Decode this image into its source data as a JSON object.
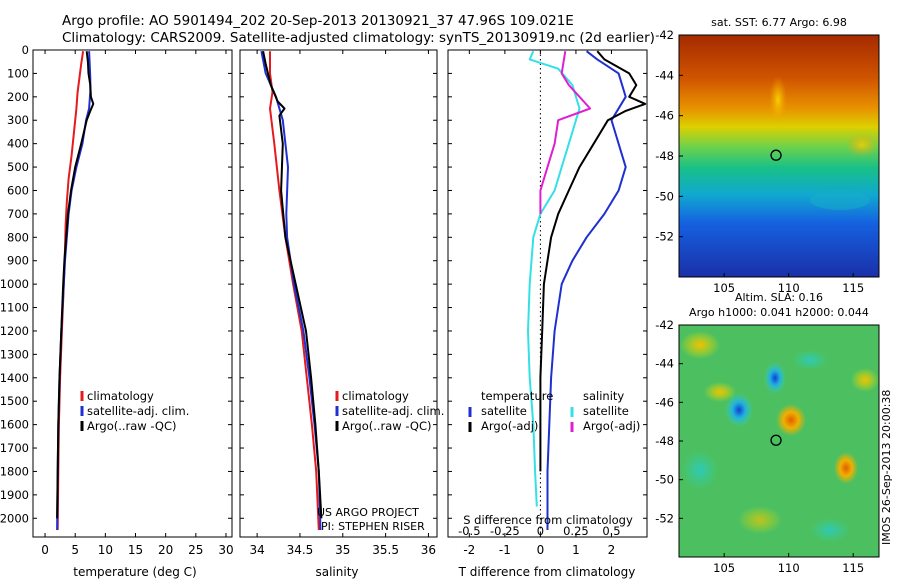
{
  "header": {
    "line1": "Argo profile: AO 5901494_202 20-Sep-2013 20130921_37 47.96S 109.021E",
    "line2": "Climatology: CARS2009. Satellite-adjusted climatology: synTS_20130919.nc (2d earlier)"
  },
  "colors": {
    "climatology": "#e41a1c",
    "satellite": "#1f2fd0",
    "argo": "#000000",
    "sat_salinity": "#33e0e6",
    "argo_salinity": "#e01fd0"
  },
  "chart_data": [
    {
      "type": "line",
      "id": "temperature",
      "xlabel": "temperature (deg C)",
      "ylabel": "",
      "xlim": [
        -2,
        31
      ],
      "ylim": [
        0,
        2080
      ],
      "y_reversed": true,
      "xticks": [
        0,
        5,
        10,
        15,
        20,
        25,
        30
      ],
      "yticks": [
        0,
        100,
        200,
        300,
        400,
        500,
        600,
        700,
        800,
        900,
        1000,
        1100,
        1200,
        1300,
        1400,
        1500,
        1600,
        1700,
        1800,
        1900,
        2000
      ],
      "legend": {
        "position": "lower-right",
        "entries": [
          "climatology",
          "satellite-adj. clim.",
          "Argo(..raw -QC)"
        ]
      },
      "series": [
        {
          "name": "climatology",
          "color": "#e41a1c",
          "points": [
            [
              6.3,
              5
            ],
            [
              6.0,
              60
            ],
            [
              5.7,
              120
            ],
            [
              5.4,
              180
            ],
            [
              5.2,
              250
            ],
            [
              4.8,
              350
            ],
            [
              4.4,
              450
            ],
            [
              3.9,
              550
            ],
            [
              3.6,
              650
            ],
            [
              3.4,
              750
            ],
            [
              3.3,
              850
            ],
            [
              3.1,
              1000
            ],
            [
              2.8,
              1200
            ],
            [
              2.5,
              1400
            ],
            [
              2.3,
              1600
            ],
            [
              2.2,
              1800
            ],
            [
              2.1,
              2050
            ]
          ]
        },
        {
          "name": "satellite-adj. clim.",
          "color": "#1f2fd0",
          "points": [
            [
              7.3,
              5
            ],
            [
              7.4,
              60
            ],
            [
              7.5,
              120
            ],
            [
              7.5,
              180
            ],
            [
              7.3,
              250
            ],
            [
              6.8,
              300
            ],
            [
              6.2,
              400
            ],
            [
              5.2,
              500
            ],
            [
              4.4,
              600
            ],
            [
              3.9,
              700
            ],
            [
              3.6,
              800
            ],
            [
              3.3,
              900
            ],
            [
              3.1,
              1000
            ],
            [
              2.7,
              1200
            ],
            [
              2.4,
              1400
            ],
            [
              2.2,
              1600
            ],
            [
              2.1,
              1800
            ],
            [
              2.0,
              2050
            ]
          ]
        },
        {
          "name": "Argo(..raw -QC)",
          "color": "#000000",
          "points": [
            [
              6.9,
              5
            ],
            [
              7.1,
              50
            ],
            [
              7.2,
              100
            ],
            [
              7.5,
              150
            ],
            [
              7.6,
              200
            ],
            [
              8.0,
              230
            ],
            [
              7.5,
              260
            ],
            [
              6.9,
              300
            ],
            [
              6.0,
              400
            ],
            [
              5.0,
              500
            ],
            [
              4.3,
              600
            ],
            [
              3.8,
              700
            ],
            [
              3.5,
              800
            ],
            [
              3.2,
              900
            ],
            [
              3.0,
              1000
            ],
            [
              2.7,
              1200
            ],
            [
              2.4,
              1400
            ],
            [
              2.2,
              1600
            ],
            [
              2.1,
              1800
            ],
            [
              2.0,
              2000
            ]
          ]
        }
      ]
    },
    {
      "type": "line",
      "id": "salinity",
      "xlabel": "salinity",
      "xlim": [
        33.8,
        36.1
      ],
      "ylim": [
        0,
        2080
      ],
      "y_reversed": true,
      "xticks": [
        34,
        34.5,
        35,
        35.5,
        36
      ],
      "legend": {
        "position": "lower-right",
        "entries": [
          "climatology",
          "satellite-adj. clim.",
          "Argo(..raw -QC)"
        ]
      },
      "annotations": [
        "US ARGO PROJECT",
        "PI: STEPHEN RISER"
      ],
      "series": [
        {
          "name": "climatology",
          "color": "#e41a1c",
          "points": [
            [
              34.15,
              5
            ],
            [
              34.15,
              100
            ],
            [
              34.18,
              180
            ],
            [
              34.15,
              250
            ],
            [
              34.2,
              400
            ],
            [
              34.26,
              600
            ],
            [
              34.33,
              800
            ],
            [
              34.42,
              1000
            ],
            [
              34.52,
              1200
            ],
            [
              34.58,
              1400
            ],
            [
              34.64,
              1600
            ],
            [
              34.69,
              1800
            ],
            [
              34.72,
              2050
            ]
          ]
        },
        {
          "name": "satellite-adj. clim.",
          "color": "#1f2fd0",
          "points": [
            [
              34.05,
              5
            ],
            [
              34.1,
              100
            ],
            [
              34.22,
              200
            ],
            [
              34.3,
              300
            ],
            [
              34.33,
              400
            ],
            [
              34.36,
              500
            ],
            [
              34.34,
              700
            ],
            [
              34.35,
              800
            ],
            [
              34.43,
              1000
            ],
            [
              34.54,
              1200
            ],
            [
              34.61,
              1400
            ],
            [
              34.67,
              1600
            ],
            [
              34.72,
              1800
            ],
            [
              34.74,
              2050
            ]
          ]
        },
        {
          "name": "Argo(..raw -QC)",
          "color": "#000000",
          "points": [
            [
              34.07,
              5
            ],
            [
              34.1,
              60
            ],
            [
              34.16,
              150
            ],
            [
              34.24,
              220
            ],
            [
              34.32,
              250
            ],
            [
              34.26,
              280
            ],
            [
              34.3,
              400
            ],
            [
              34.28,
              600
            ],
            [
              34.33,
              800
            ],
            [
              34.45,
              1000
            ],
            [
              34.57,
              1200
            ],
            [
              34.63,
              1400
            ],
            [
              34.68,
              1600
            ],
            [
              34.72,
              1800
            ],
            [
              34.75,
              2000
            ]
          ]
        }
      ]
    },
    {
      "type": "line",
      "id": "difference",
      "xlabel": "T difference from climatology",
      "xlabel_top": "S difference from climatology",
      "xlim": [
        -2.6,
        3.0
      ],
      "ylim": [
        0,
        2080
      ],
      "y_reversed": true,
      "xticks": [
        -2,
        -1,
        0,
        1,
        2
      ],
      "sticks": {
        "values": [
          -0.5,
          -0.25,
          0,
          0.25,
          0.5
        ],
        "labels": [
          "-0.5",
          "-0.25",
          "0",
          "0.25",
          "0.5"
        ]
      },
      "legend": {
        "position": "lower-right",
        "groups": [
          {
            "title": "temperature",
            "entries": [
              "satellite",
              "Argo(-adj)"
            ]
          },
          {
            "title": "salinity",
            "entries": [
              "satellite",
              "Argo(-adj)"
            ]
          }
        ]
      },
      "series": [
        {
          "name": "satellite",
          "group": "temperature",
          "color": "#1f2fd0",
          "points": [
            [
              1.3,
              5
            ],
            [
              1.6,
              40
            ],
            [
              2.2,
              100
            ],
            [
              2.4,
              200
            ],
            [
              2.0,
              300
            ],
            [
              2.2,
              400
            ],
            [
              2.4,
              500
            ],
            [
              2.2,
              600
            ],
            [
              1.8,
              700
            ],
            [
              1.3,
              800
            ],
            [
              0.9,
              900
            ],
            [
              0.6,
              1000
            ],
            [
              0.4,
              1200
            ],
            [
              0.3,
              1400
            ],
            [
              0.25,
              1600
            ],
            [
              0.2,
              1800
            ],
            [
              0.2,
              2050
            ]
          ]
        },
        {
          "name": "Argo(-adj)",
          "group": "temperature",
          "color": "#000000",
          "points": [
            [
              1.6,
              5
            ],
            [
              1.8,
              40
            ],
            [
              2.5,
              100
            ],
            [
              2.7,
              150
            ],
            [
              2.5,
              200
            ],
            [
              2.95,
              230
            ],
            [
              2.4,
              260
            ],
            [
              1.9,
              300
            ],
            [
              1.5,
              400
            ],
            [
              1.1,
              500
            ],
            [
              0.8,
              600
            ],
            [
              0.5,
              700
            ],
            [
              0.3,
              800
            ],
            [
              0.2,
              900
            ],
            [
              0.1,
              1000
            ],
            [
              0.05,
              1200
            ],
            [
              0.0,
              1400
            ],
            [
              0.0,
              1600
            ],
            [
              0.0,
              1800
            ]
          ]
        },
        {
          "name": "satellite",
          "group": "salinity",
          "color": "#33e0e6",
          "points": [
            [
              -0.2,
              5
            ],
            [
              -0.3,
              40
            ],
            [
              0.5,
              80
            ],
            [
              0.9,
              150
            ],
            [
              1.1,
              250
            ],
            [
              0.9,
              350
            ],
            [
              0.6,
              500
            ],
            [
              0.4,
              600
            ],
            [
              0.0,
              700
            ],
            [
              -0.2,
              800
            ],
            [
              -0.3,
              1000
            ],
            [
              -0.35,
              1200
            ],
            [
              -0.3,
              1400
            ],
            [
              -0.2,
              1600
            ],
            [
              -0.15,
              1800
            ],
            [
              -0.1,
              1950
            ]
          ]
        },
        {
          "name": "Argo(-adj)",
          "group": "salinity",
          "color": "#e01fd0",
          "points": [
            [
              0.7,
              5
            ],
            [
              0.6,
              100
            ],
            [
              0.8,
              150
            ],
            [
              1.1,
              200
            ],
            [
              1.4,
              250
            ],
            [
              0.5,
              300
            ],
            [
              0.4,
              400
            ],
            [
              0.2,
              500
            ],
            [
              0.0,
              600
            ],
            [
              0.0,
              700
            ]
          ]
        }
      ]
    },
    {
      "type": "heatmap",
      "id": "sst-map",
      "title": "sat. SST: 6.77 Argo: 6.98",
      "xlim": [
        101.5,
        117
      ],
      "ylim": [
        -54,
        -42
      ],
      "xticks": [
        105,
        110,
        115
      ],
      "yticks": [
        -42,
        -44,
        -46,
        -48,
        -50,
        -52
      ],
      "marker": {
        "lon": 109.02,
        "lat": -47.96
      }
    },
    {
      "type": "heatmap",
      "id": "sla-map",
      "title": "Altim. SLA: 0.16",
      "subtitle": "Argo h1000: 0.041 h2000: 0.044",
      "xlim": [
        101.5,
        117
      ],
      "ylim": [
        -54,
        -42
      ],
      "xticks": [
        105,
        110,
        115
      ],
      "yticks": [
        -42,
        -44,
        -46,
        -48,
        -50,
        -52
      ],
      "marker": {
        "lon": 109.02,
        "lat": -47.96
      },
      "side_label": "IMOS 26-Sep-2013 20:00:38"
    }
  ]
}
